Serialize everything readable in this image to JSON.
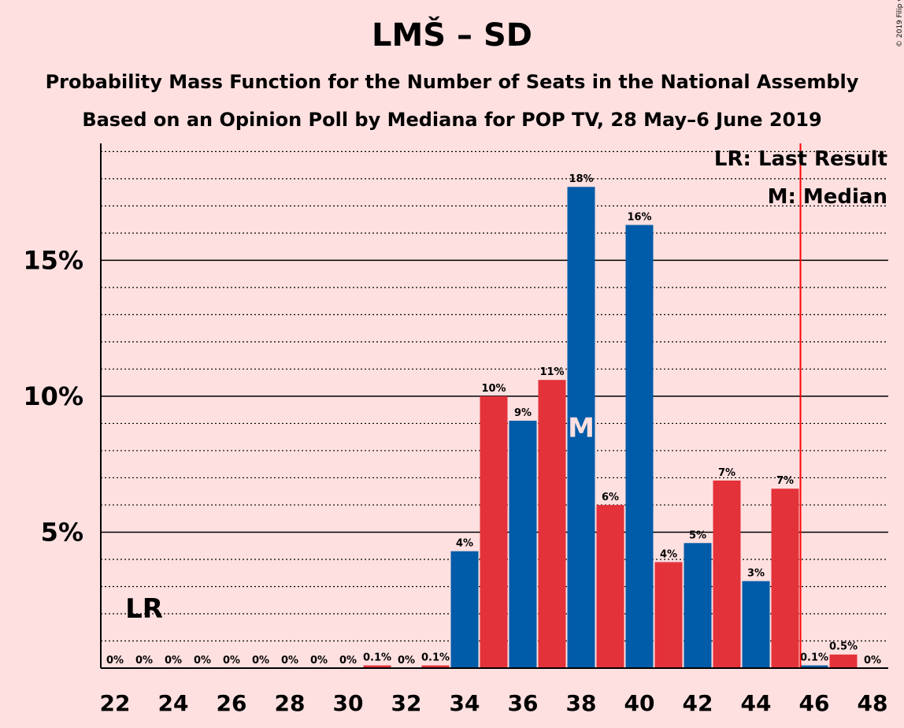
{
  "chart_data": {
    "type": "bar",
    "title": "LMŠ – SD",
    "subtitle": "Probability Mass Function for the Number of Seats in the National Assembly",
    "subtitle2": "Based on an Opinion Poll by Mediana for POP TV, 28 May–6 June 2019",
    "copyright": "© 2019 Filip van Laenen",
    "x": [
      22,
      23,
      24,
      25,
      26,
      27,
      28,
      29,
      30,
      31,
      32,
      33,
      34,
      35,
      36,
      37,
      38,
      39,
      40,
      41,
      42,
      43,
      44,
      45,
      46,
      47,
      48
    ],
    "values": [
      0,
      0,
      0,
      0,
      0,
      0,
      0,
      0,
      0,
      0.1,
      0,
      0.1,
      4.3,
      10.0,
      9.1,
      10.6,
      17.7,
      6.0,
      16.3,
      3.9,
      4.6,
      6.9,
      3.2,
      6.6,
      0.1,
      0.5,
      0
    ],
    "value_labels": [
      "0%",
      "0%",
      "0%",
      "0%",
      "0%",
      "0%",
      "0%",
      "0%",
      "0%",
      "0.1%",
      "0%",
      "0.1%",
      "4%",
      "10%",
      "9%",
      "11%",
      "18%",
      "6%",
      "16%",
      "4%",
      "5%",
      "7%",
      "3%",
      "7%",
      "0.1%",
      "0.5%",
      "0%"
    ],
    "x_ticks": [
      22,
      24,
      26,
      28,
      30,
      32,
      34,
      36,
      38,
      40,
      42,
      44,
      46,
      48
    ],
    "x_tick_labels": [
      "22",
      "24",
      "26",
      "28",
      "30",
      "32",
      "34",
      "36",
      "38",
      "40",
      "42",
      "44",
      "46",
      "48"
    ],
    "y_ticks": [
      5,
      10,
      15
    ],
    "y_tick_labels": [
      "5%",
      "10%",
      "15%"
    ],
    "ylim": [
      0,
      19.3
    ],
    "grid": true,
    "majority_line_x": 45.5,
    "last_result_x": 23,
    "last_result_label": "LR",
    "median_x": 38,
    "median_label": "M",
    "legend": [
      "LR: Last Result",
      "M: Median"
    ],
    "legend_position": "top-right",
    "colors": {
      "blue": "#005ba8",
      "red": "#e3323a",
      "majority_line": "#ff0000",
      "background": "#ffe0e0",
      "median_mark": "#ffe0e0"
    }
  }
}
